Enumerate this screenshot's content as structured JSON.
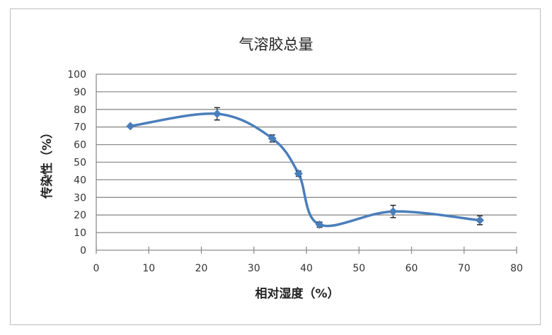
{
  "chart_data": {
    "type": "line",
    "title": "气溶胶总量",
    "xlabel": "相对湿度（%）",
    "ylabel": "传染性（%）",
    "xlim": [
      0,
      80
    ],
    "ylim": [
      0,
      100
    ],
    "xticks": [
      0,
      10,
      20,
      30,
      40,
      50,
      60,
      70,
      80
    ],
    "yticks": [
      0,
      10,
      20,
      30,
      40,
      50,
      60,
      70,
      80,
      90,
      100
    ],
    "grid": "horizontal",
    "smooth": true,
    "marker": "diamond",
    "color": "#4a7ebb",
    "x": [
      6.5,
      23,
      33.5,
      38.5,
      42.5,
      56.5,
      73
    ],
    "y": [
      70.5,
      77.5,
      63.5,
      43.5,
      14.5,
      22,
      17
    ],
    "error": [
      0,
      3.5,
      2,
      1.5,
      1.5,
      3.5,
      2.5
    ]
  }
}
